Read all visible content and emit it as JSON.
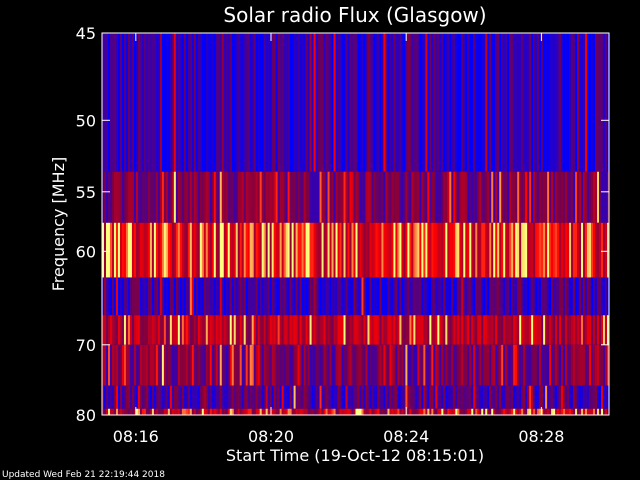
{
  "chart_data": {
    "type": "heatmap",
    "title": "Solar radio Flux (Glasgow)",
    "xlabel": "Start Time (19-Oct-12 08:15:01)",
    "ylabel": "Frequency [MHz]",
    "x_tick_labels": [
      "08:16",
      "08:20",
      "08:24",
      "08:28"
    ],
    "x_tick_minutes": [
      1,
      5,
      9,
      13
    ],
    "xlim_minutes": [
      0,
      15
    ],
    "y_tick_labels": [
      "45",
      "50",
      "55",
      "60",
      "70",
      "80"
    ],
    "y_tick_values": [
      45,
      50,
      55,
      60,
      70,
      80
    ],
    "ylim": [
      45,
      80
    ],
    "y_scale": "reciprocal",
    "colormap": [
      "#0000ff",
      "#800040",
      "#ff0000",
      "#ffff80"
    ],
    "bands": [
      {
        "freq_range": [
          45,
          53.5
        ],
        "mean_level": 0.12,
        "spikiness": 0.05
      },
      {
        "freq_range": [
          53.5,
          57.5
        ],
        "mean_level": 0.3,
        "spikiness": 0.1
      },
      {
        "freq_range": [
          57.5,
          62.5
        ],
        "mean_level": 0.55,
        "spikiness": 0.3
      },
      {
        "freq_range": [
          62.5,
          66.5
        ],
        "mean_level": 0.15,
        "spikiness": 0.05
      },
      {
        "freq_range": [
          66.5,
          70
        ],
        "mean_level": 0.45,
        "spikiness": 0.1
      },
      {
        "freq_range": [
          70,
          75.5
        ],
        "mean_level": 0.3,
        "spikiness": 0.15
      },
      {
        "freq_range": [
          75.5,
          79
        ],
        "mean_level": 0.2,
        "spikiness": 0.1
      },
      {
        "freq_range": [
          79,
          80
        ],
        "mean_level": 0.45,
        "spikiness": 0.3
      }
    ],
    "grid": false,
    "legend": "none"
  },
  "footer": {
    "updated": "Updated Wed Feb 21 22:19:44 2018"
  }
}
